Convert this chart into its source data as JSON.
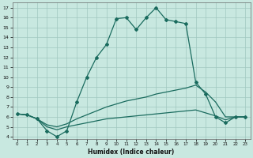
{
  "xlabel": "Humidex (Indice chaleur)",
  "xlim": [
    -0.5,
    23.5
  ],
  "ylim": [
    3.8,
    17.5
  ],
  "yticks": [
    4,
    5,
    6,
    7,
    8,
    9,
    10,
    11,
    12,
    13,
    14,
    15,
    16,
    17
  ],
  "xticks": [
    0,
    1,
    2,
    3,
    4,
    5,
    6,
    7,
    8,
    9,
    10,
    11,
    12,
    13,
    14,
    15,
    16,
    17,
    18,
    19,
    20,
    21,
    22,
    23
  ],
  "bg_color": "#c8e8e0",
  "grid_color": "#a0c8c0",
  "line_color": "#1a6b5e",
  "curve_main_x": [
    0,
    1,
    2,
    3,
    4,
    5,
    6,
    7,
    8,
    9,
    10,
    11,
    12,
    13,
    14,
    15,
    16,
    17,
    18,
    19,
    20,
    21,
    22,
    23
  ],
  "curve_main_y": [
    6.3,
    6.2,
    5.8,
    4.6,
    4.0,
    4.6,
    7.5,
    10.0,
    12.0,
    13.3,
    15.9,
    16.0,
    14.8,
    16.0,
    17.0,
    15.8,
    15.6,
    15.4,
    9.5,
    8.3,
    6.0,
    5.4,
    6.0,
    6.0
  ],
  "curve2_x": [
    0,
    1,
    2,
    3,
    4,
    5,
    6,
    7,
    8,
    9,
    10,
    11,
    12,
    13,
    14,
    15,
    16,
    17,
    18,
    19,
    20,
    21,
    22,
    23
  ],
  "curve2_y": [
    6.3,
    6.2,
    5.8,
    5.2,
    5.0,
    5.3,
    5.8,
    6.2,
    6.6,
    7.0,
    7.3,
    7.6,
    7.8,
    8.0,
    8.3,
    8.5,
    8.7,
    8.9,
    9.2,
    8.5,
    7.5,
    6.0,
    6.0,
    6.0
  ],
  "curve3_x": [
    0,
    1,
    2,
    3,
    4,
    5,
    6,
    7,
    8,
    9,
    10,
    11,
    12,
    13,
    14,
    15,
    16,
    17,
    18,
    19,
    20,
    21,
    22,
    23
  ],
  "curve3_y": [
    6.3,
    6.2,
    5.8,
    5.0,
    4.7,
    5.0,
    5.2,
    5.4,
    5.6,
    5.8,
    5.9,
    6.0,
    6.1,
    6.2,
    6.3,
    6.4,
    6.5,
    6.6,
    6.7,
    6.4,
    6.1,
    5.7,
    6.0,
    6.0
  ]
}
